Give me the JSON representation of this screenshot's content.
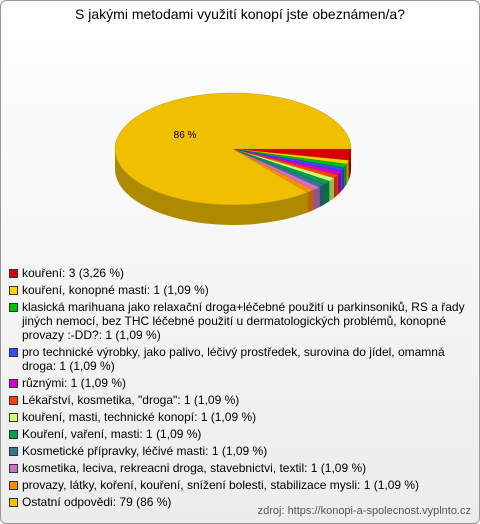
{
  "chart_data": {
    "type": "pie",
    "title": "S jakými metodami využití konopí jste obeznámen/a?",
    "categories": [
      "kouření: 3 (3,26 %)",
      "kouření, konopné masti: 1 (1,09 %)",
      "klasická marihuana jako relaxační droga+léčebné použití u parkinsoniků, RS a řady jiných nemocí, bez THC léčebné použití u dermatologických problémů, konopné provazy :-DD?: 1 (1,09 %)",
      "pro technické výrobky, jako palivo, léčivý prostředek, surovina do jídel, omamná droga: 1 (1,09 %)",
      "různými: 1 (1,09 %)",
      "Lékařství, kosmetika, \"droga\": 1 (1,09 %)",
      "kouření, masti, technické konopí: 1 (1,09 %)",
      "Kouření, vaření, masti: 1 (1,09 %)",
      "Kosmetické přípravky, léčivé masti: 1 (1,09 %)",
      "kosmetika, leciva, rekreacni droga, stavebnictvi, textil: 1 (1,09 %)",
      "provazy, látky, koření, kouření, snížení bolesti, stabilizace mysli: 1 (1,09 %)",
      "Ostatní odpovědi: 79 (86 %)"
    ],
    "values": [
      3.26,
      1.09,
      1.09,
      1.09,
      1.09,
      1.09,
      1.09,
      1.09,
      1.09,
      1.09,
      1.09,
      86
    ],
    "value_labels": [
      null,
      null,
      null,
      null,
      null,
      null,
      null,
      null,
      null,
      null,
      null,
      "86 %"
    ],
    "colors": [
      "#d40000",
      "#ffd200",
      "#00c000",
      "#3050ff",
      "#d000d0",
      "#ff4000",
      "#d0ff70",
      "#00a050",
      "#307890",
      "#d070d0",
      "#ff8c00",
      "#f0c000"
    ],
    "source": "zdroj: https://konopi-a-spolecnost.vyplnto.cz"
  }
}
